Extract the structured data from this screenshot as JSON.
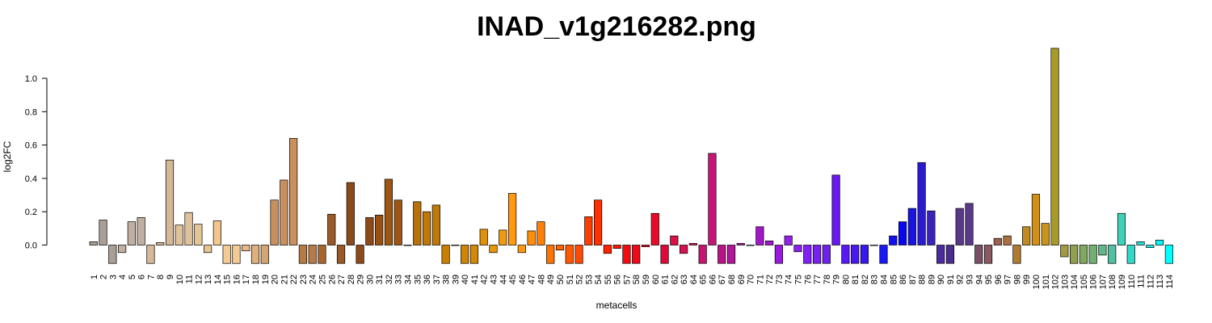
{
  "chart_data": {
    "type": "bar",
    "title": "INAD_v1g216282.png",
    "xlabel": "metacells",
    "ylabel": "log2FC",
    "yticks": [
      0.0,
      0.2,
      0.4,
      0.6,
      0.8,
      1.0
    ],
    "ytick_labels": [
      "0.0",
      "0.2",
      "0.4",
      "0.6",
      "0.8",
      "1.0"
    ],
    "ylim": [
      -0.11,
      1.18
    ],
    "grid": false,
    "legend": "none",
    "categories": [
      "1",
      "2",
      "3",
      "4",
      "5",
      "6",
      "7",
      "8",
      "9",
      "10",
      "11",
      "12",
      "13",
      "14",
      "15",
      "16",
      "17",
      "18",
      "19",
      "20",
      "21",
      "22",
      "23",
      "24",
      "25",
      "26",
      "27",
      "28",
      "29",
      "30",
      "31",
      "32",
      "33",
      "34",
      "35",
      "36",
      "37",
      "38",
      "39",
      "40",
      "41",
      "42",
      "43",
      "44",
      "45",
      "46",
      "47",
      "48",
      "49",
      "50",
      "51",
      "52",
      "53",
      "54",
      "55",
      "56",
      "57",
      "58",
      "59",
      "60",
      "61",
      "62",
      "63",
      "64",
      "65",
      "66",
      "67",
      "68",
      "69",
      "70",
      "71",
      "72",
      "73",
      "74",
      "75",
      "76",
      "77",
      "78",
      "79",
      "80",
      "81",
      "82",
      "83",
      "84",
      "85",
      "86",
      "87",
      "88",
      "89",
      "90",
      "91",
      "92",
      "93",
      "94",
      "95",
      "96",
      "97",
      "98",
      "99",
      "100",
      "101",
      "102",
      "103",
      "104",
      "105",
      "106",
      "107",
      "108",
      "109",
      "110",
      "111",
      "112",
      "113",
      "114"
    ],
    "values": [
      0.02,
      0.15,
      -0.11,
      -0.045,
      0.14,
      0.165,
      -0.11,
      0.015,
      0.51,
      0.12,
      0.195,
      0.125,
      -0.045,
      0.145,
      -0.11,
      -0.11,
      -0.035,
      -0.11,
      -0.11,
      0.27,
      0.39,
      0.64,
      -0.11,
      -0.11,
      -0.11,
      0.185,
      -0.11,
      0.375,
      -0.11,
      0.165,
      0.18,
      0.395,
      0.27,
      0.0,
      0.26,
      0.2,
      0.24,
      -0.11,
      0.0,
      -0.11,
      -0.11,
      0.095,
      -0.045,
      0.09,
      0.31,
      -0.045,
      0.085,
      0.14,
      -0.11,
      -0.03,
      -0.11,
      -0.11,
      0.17,
      0.27,
      -0.05,
      -0.02,
      -0.11,
      -0.11,
      -0.01,
      0.19,
      -0.11,
      0.055,
      -0.05,
      0.01,
      -0.11,
      0.55,
      -0.11,
      -0.11,
      0.01,
      0.0,
      0.11,
      0.025,
      -0.11,
      0.055,
      -0.04,
      -0.11,
      -0.11,
      -0.11,
      0.42,
      -0.11,
      -0.11,
      -0.11,
      0.0,
      -0.11,
      0.055,
      0.14,
      0.22,
      0.495,
      0.205,
      -0.11,
      -0.11,
      0.22,
      0.25,
      -0.11,
      -0.11,
      0.04,
      0.055,
      -0.11,
      0.11,
      0.305,
      0.13,
      1.18,
      -0.07,
      -0.11,
      -0.11,
      -0.11,
      -0.06,
      -0.11,
      0.19,
      -0.11,
      0.02,
      -0.015,
      0.03,
      -0.11
    ],
    "colors": [
      "#a89f96",
      "#a89f96",
      "#a89f96",
      "#c0b0a2",
      "#c0b0a2",
      "#c0b0a2",
      "#d4b898",
      "#d4b898",
      "#d4b898",
      "#e0c29a",
      "#e0c29a",
      "#e6c595",
      "#e6c595",
      "#f2c68e",
      "#f5c992",
      "#f5c992",
      "#e8b88a",
      "#ddb07e",
      "#d4a574",
      "#c8905e",
      "#c8905e",
      "#c8905e",
      "#b87a45",
      "#b87a45",
      "#a8662e",
      "#9a5a28",
      "#9a5a28",
      "#8c4a1a",
      "#8c4a1a",
      "#8c4a1a",
      "#9a5010",
      "#9e5512",
      "#9e5512",
      "#a8620e",
      "#b8700a",
      "#c07808",
      "#c07808",
      "#c87f06",
      "#d08406",
      "#d08406",
      "#d58806",
      "#e0900a",
      "#e8960c",
      "#f0990e",
      "#ff9a10",
      "#ff9a10",
      "#ff8c0a",
      "#ff8005",
      "#ff7300",
      "#ff6600",
      "#ff5800",
      "#ff4a00",
      "#ff3d00",
      "#ff3000",
      "#ff2200",
      "#ff1500",
      "#f50a10",
      "#ee0818",
      "#ee0820",
      "#e80a28",
      "#e0083a",
      "#da1048",
      "#d81050",
      "#d41058",
      "#c81470",
      "#c81478",
      "#b81488",
      "#b01898",
      "#a818a8",
      "#a818b8",
      "#a018c8",
      "#a018d0",
      "#9a18e0",
      "#9420ea",
      "#8c20f0",
      "#8020f4",
      "#7820f0",
      "#7020ee",
      "#6818f0",
      "#5818f0",
      "#4818f0",
      "#3818f0",
      "#2818f0",
      "#1818f0",
      "#1010ee",
      "#0808f0",
      "#1a14e0",
      "#2a1ccc",
      "#3a24b8",
      "#4a2ca0",
      "#4a2c90",
      "#5a3888",
      "#5a3888",
      "#7a5068",
      "#8a5860",
      "#9a6050",
      "#aa7040",
      "#b07a30",
      "#c08a20",
      "#d09018",
      "#c8941c",
      "#a89a28",
      "#a09a40",
      "#90a050",
      "#80a860",
      "#70b070",
      "#60b888",
      "#50c0a0",
      "#40d0b8",
      "#30d8c8",
      "#20e0d8",
      "#18e8e8",
      "#10f0f0",
      "#00ffff"
    ]
  }
}
